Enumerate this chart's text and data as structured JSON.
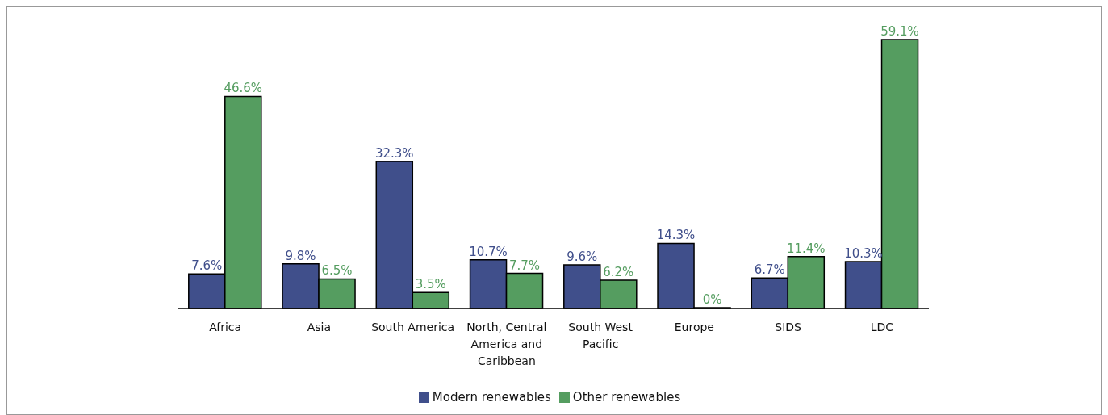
{
  "chart_data": {
    "type": "bar",
    "categories": [
      "Africa",
      "Asia",
      "South America",
      "North, Central America and Caribbean",
      "South West Pacific",
      "Europe",
      "SIDS",
      "LDC"
    ],
    "series": [
      {
        "name": "Modern renewables",
        "color": "#404f8b",
        "values": [
          7.6,
          9.8,
          32.3,
          10.7,
          9.6,
          14.3,
          6.7,
          10.3
        ],
        "value_labels": [
          "7.6%",
          "9.8%",
          "32.3%",
          "10.7%",
          "9.6%",
          "14.3%",
          "6.7%",
          "10.3%"
        ]
      },
      {
        "name": "Other renewables",
        "color": "#559d60",
        "values": [
          46.6,
          6.5,
          3.5,
          7.7,
          6.2,
          0,
          11.4,
          59.1
        ],
        "value_labels": [
          "46.6%",
          "6.5%",
          "3.5%",
          "7.7%",
          "6.2%",
          "0%",
          "11.4%",
          "59.1%"
        ]
      }
    ],
    "legend": "bottom",
    "grid": false
  }
}
